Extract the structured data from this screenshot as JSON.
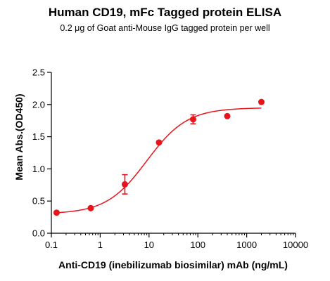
{
  "chart_data": {
    "type": "scatter",
    "title": "Human CD19, mFc Tagged protein ELISA",
    "subtitle": "0.2 μg of Goat anti-Mouse IgG tagged protein per well",
    "xlabel": "Anti-CD19 (inebilizumab biosimilar) mAb (ng/mL)",
    "ylabel": "Mean Abs.(OD450)",
    "x_scale": "log",
    "xlim": [
      0.1,
      10000
    ],
    "ylim": [
      0,
      2.5
    ],
    "x_ticks": [
      "0.1",
      "1",
      "10",
      "100",
      "1000",
      "10000"
    ],
    "y_ticks": [
      "0.0",
      "0.5",
      "1.0",
      "1.5",
      "2.0",
      "2.5"
    ],
    "grid": false,
    "legend": "none",
    "color": "#e8141c",
    "series": [
      {
        "x": [
          0.128,
          0.64,
          3.2,
          16,
          80,
          400,
          2000
        ],
        "y": [
          0.32,
          0.39,
          0.76,
          1.41,
          1.77,
          1.82,
          2.04
        ],
        "error": [
          0.02,
          0.02,
          0.15,
          0.03,
          0.07,
          0.02,
          0.02
        ]
      }
    ],
    "fit": {
      "model": "4PL",
      "bottom": 0.3,
      "top": 1.95,
      "ec50": 9,
      "hill": 1.05
    }
  }
}
